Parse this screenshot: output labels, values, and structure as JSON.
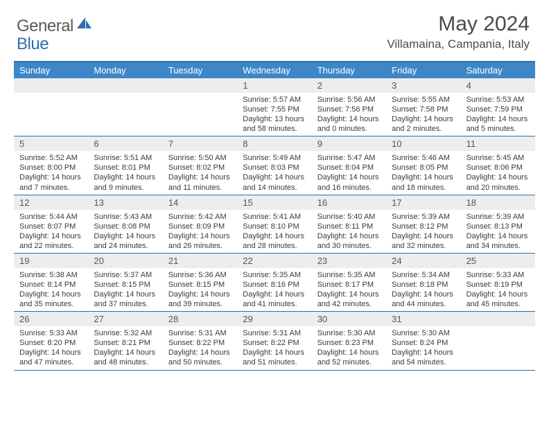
{
  "logo": {
    "general": "General",
    "blue": "Blue"
  },
  "title": "May 2024",
  "location": "Villamaina, Campania, Italy",
  "dow": [
    "Sunday",
    "Monday",
    "Tuesday",
    "Wednesday",
    "Thursday",
    "Friday",
    "Saturday"
  ],
  "colors": {
    "header_bar": "#3d87c9",
    "border": "#2d6db0",
    "daynum_bg": "#ededed",
    "text": "#3a3a3a",
    "title_text": "#4a4a4a"
  },
  "layout": {
    "first_weekday_index": 3,
    "days_in_month": 31,
    "columns": 7
  },
  "days": {
    "1": {
      "sunrise": "5:57 AM",
      "sunset": "7:55 PM",
      "daylight": "13 hours and 58 minutes."
    },
    "2": {
      "sunrise": "5:56 AM",
      "sunset": "7:56 PM",
      "daylight": "14 hours and 0 minutes."
    },
    "3": {
      "sunrise": "5:55 AM",
      "sunset": "7:58 PM",
      "daylight": "14 hours and 2 minutes."
    },
    "4": {
      "sunrise": "5:53 AM",
      "sunset": "7:59 PM",
      "daylight": "14 hours and 5 minutes."
    },
    "5": {
      "sunrise": "5:52 AM",
      "sunset": "8:00 PM",
      "daylight": "14 hours and 7 minutes."
    },
    "6": {
      "sunrise": "5:51 AM",
      "sunset": "8:01 PM",
      "daylight": "14 hours and 9 minutes."
    },
    "7": {
      "sunrise": "5:50 AM",
      "sunset": "8:02 PM",
      "daylight": "14 hours and 11 minutes."
    },
    "8": {
      "sunrise": "5:49 AM",
      "sunset": "8:03 PM",
      "daylight": "14 hours and 14 minutes."
    },
    "9": {
      "sunrise": "5:47 AM",
      "sunset": "8:04 PM",
      "daylight": "14 hours and 16 minutes."
    },
    "10": {
      "sunrise": "5:46 AM",
      "sunset": "8:05 PM",
      "daylight": "14 hours and 18 minutes."
    },
    "11": {
      "sunrise": "5:45 AM",
      "sunset": "8:06 PM",
      "daylight": "14 hours and 20 minutes."
    },
    "12": {
      "sunrise": "5:44 AM",
      "sunset": "8:07 PM",
      "daylight": "14 hours and 22 minutes."
    },
    "13": {
      "sunrise": "5:43 AM",
      "sunset": "8:08 PM",
      "daylight": "14 hours and 24 minutes."
    },
    "14": {
      "sunrise": "5:42 AM",
      "sunset": "8:09 PM",
      "daylight": "14 hours and 26 minutes."
    },
    "15": {
      "sunrise": "5:41 AM",
      "sunset": "8:10 PM",
      "daylight": "14 hours and 28 minutes."
    },
    "16": {
      "sunrise": "5:40 AM",
      "sunset": "8:11 PM",
      "daylight": "14 hours and 30 minutes."
    },
    "17": {
      "sunrise": "5:39 AM",
      "sunset": "8:12 PM",
      "daylight": "14 hours and 32 minutes."
    },
    "18": {
      "sunrise": "5:39 AM",
      "sunset": "8:13 PM",
      "daylight": "14 hours and 34 minutes."
    },
    "19": {
      "sunrise": "5:38 AM",
      "sunset": "8:14 PM",
      "daylight": "14 hours and 35 minutes."
    },
    "20": {
      "sunrise": "5:37 AM",
      "sunset": "8:15 PM",
      "daylight": "14 hours and 37 minutes."
    },
    "21": {
      "sunrise": "5:36 AM",
      "sunset": "8:15 PM",
      "daylight": "14 hours and 39 minutes."
    },
    "22": {
      "sunrise": "5:35 AM",
      "sunset": "8:16 PM",
      "daylight": "14 hours and 41 minutes."
    },
    "23": {
      "sunrise": "5:35 AM",
      "sunset": "8:17 PM",
      "daylight": "14 hours and 42 minutes."
    },
    "24": {
      "sunrise": "5:34 AM",
      "sunset": "8:18 PM",
      "daylight": "14 hours and 44 minutes."
    },
    "25": {
      "sunrise": "5:33 AM",
      "sunset": "8:19 PM",
      "daylight": "14 hours and 45 minutes."
    },
    "26": {
      "sunrise": "5:33 AM",
      "sunset": "8:20 PM",
      "daylight": "14 hours and 47 minutes."
    },
    "27": {
      "sunrise": "5:32 AM",
      "sunset": "8:21 PM",
      "daylight": "14 hours and 48 minutes."
    },
    "28": {
      "sunrise": "5:31 AM",
      "sunset": "8:22 PM",
      "daylight": "14 hours and 50 minutes."
    },
    "29": {
      "sunrise": "5:31 AM",
      "sunset": "8:22 PM",
      "daylight": "14 hours and 51 minutes."
    },
    "30": {
      "sunrise": "5:30 AM",
      "sunset": "8:23 PM",
      "daylight": "14 hours and 52 minutes."
    },
    "31": {
      "sunrise": "5:30 AM",
      "sunset": "8:24 PM",
      "daylight": "14 hours and 54 minutes."
    }
  }
}
